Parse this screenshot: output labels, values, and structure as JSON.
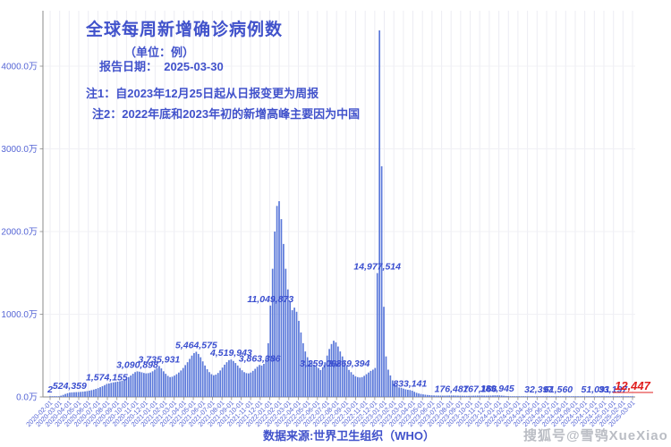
{
  "page": {
    "background": "#ffffff"
  },
  "header": {
    "title": "全球每周新增确诊病例数",
    "unit_note": "（单位：例）",
    "report_date": "报告日期：  2025-03-30",
    "note1": "注1：自2023年12月25日起从日报变更为周报",
    "note2": "注2：2022年底和2023年初的新增高峰主要因为中国"
  },
  "footer": {
    "source": "数据来源:世界卫生组织（WHO）",
    "watermark": "搜狐号@雪鸮XueXiao"
  },
  "chart_data": {
    "type": "bar",
    "title": "全球每周新增确诊病例数",
    "unit": "例",
    "series_name": "每周新增确诊病例数",
    "grid": true,
    "ylim": [
      0,
      44500000
    ],
    "bar_color": "#5b79da",
    "label_color": "#3a4ecf",
    "tick_label_color": "#5565d5",
    "highlight_color": "#e01f1f",
    "axis_color": "#8a8a8a",
    "y_ticks": [
      {
        "label": "0.0万",
        "value": 0
      },
      {
        "label": "1000.0万",
        "value": 10000000
      },
      {
        "label": "2000.0万",
        "value": 20000000
      },
      {
        "label": "3000.0万",
        "value": 30000000
      },
      {
        "label": "4000.0万",
        "value": 40000000
      }
    ],
    "x_tick_labels": [
      "2020-02-01",
      "2020-03-01",
      "2020-04-01",
      "2020-05-01",
      "2020-06-01",
      "2020-07-01",
      "2020-08-01",
      "2020-09-01",
      "2020-10-01",
      "2020-11-01",
      "2020-12-01",
      "2021-01-01",
      "2021-02-01",
      "2021-03-01",
      "2021-04-01",
      "2021-05-01",
      "2021-06-01",
      "2021-07-01",
      "2021-08-01",
      "2021-09-01",
      "2021-10-01",
      "2021-11-01",
      "2021-12-01",
      "2022-01-01",
      "2022-02-01",
      "2022-03-01",
      "2022-04-01",
      "2022-05-01",
      "2022-06-01",
      "2022-07-01",
      "2022-08-01",
      "2022-09-01",
      "2022-10-01",
      "2022-11-01",
      "2022-12-01",
      "2023-01-01",
      "2023-02-01",
      "2023-03-01",
      "2023-04-01",
      "2023-05-01",
      "2023-06-01",
      "2023-07-01",
      "2023-08-01",
      "2023-09-01",
      "2023-10-01",
      "2023-11-01",
      "2023-12-01",
      "2024-01-01",
      "2024-02-01",
      "2024-03-01",
      "2024-04-01",
      "2024-05-01",
      "2024-06-01",
      "2024-07-01",
      "2024-08-01",
      "2024-09-01",
      "2024-10-01",
      "2024-11-01",
      "2024-12-01",
      "2025-01-01",
      "2025-02-01",
      "2025-03-01"
    ],
    "values": [
      2,
      30000,
      60000,
      50000,
      80000,
      150000,
      250000,
      360000,
      450000,
      524359,
      550000,
      570000,
      580000,
      590000,
      610000,
      640000,
      670000,
      710000,
      760000,
      820000,
      890000,
      970000,
      1070000,
      1180000,
      1300000,
      1430000,
      1574155,
      1630000,
      1700000,
      1760000,
      1800000,
      1840000,
      1900000,
      1980000,
      2090000,
      2230000,
      2400000,
      2590000,
      2800000,
      3000000,
      3090898,
      3050000,
      2980000,
      2900000,
      2850000,
      2880000,
      2950000,
      3100000,
      3300000,
      3500000,
      3735931,
      3450000,
      3100000,
      2800000,
      2550000,
      2400000,
      2450000,
      2580000,
      2750000,
      2950000,
      3200000,
      3500000,
      3850000,
      4200000,
      4600000,
      5000000,
      5300000,
      5464575,
      5200000,
      4800000,
      4300000,
      3800000,
      3350000,
      3000000,
      2750000,
      2620000,
      2700000,
      2900000,
      3200000,
      3550000,
      3900000,
      4200000,
      4450000,
      4519943,
      4350000,
      4100000,
      3800000,
      3500000,
      3220000,
      3000000,
      2880000,
      2850000,
      2950000,
      3150000,
      3400000,
      3650000,
      3863386,
      3800000,
      4000000,
      4800000,
      6500000,
      11049873,
      15500000,
      20000000,
      23100000,
      23670000,
      21500000,
      18500000,
      15500000,
      13000000,
      11500000,
      10500000,
      10800000,
      10300000,
      9200000,
      7800000,
      6500000,
      5500000,
      4800000,
      4400000,
      4100000,
      3900000,
      3700000,
      3500000,
      3259098,
      3600000,
      4200000,
      5000000,
      5800000,
      6400000,
      6800000,
      6600000,
      6100000,
      5500000,
      4900000,
      4300000,
      3800000,
      3269394,
      3000000,
      2700000,
      2500000,
      2400000,
      2350000,
      2400000,
      2550000,
      2750000,
      2950000,
      3150000,
      3300000,
      3500000,
      14977514,
      44324000,
      27890000,
      10900000,
      4900000,
      3300000,
      2600000,
      2000000,
      1600000,
      1350000,
      1150000,
      1100000,
      1000000,
      920000,
      870000,
      833141,
      750000,
      620000,
      500000,
      420000,
      360000,
      310000,
      270000,
      240000,
      215000,
      195000,
      180000,
      172000,
      166000,
      161000,
      158000,
      160000,
      165000,
      170000,
      176487,
      172000,
      165000,
      157000,
      149000,
      142000,
      137000,
      135000,
      138000,
      143000,
      150000,
      157000,
      162000,
      167166,
      163000,
      155000,
      150000,
      155000,
      163000,
      175000,
      186000,
      189945,
      180000,
      162000,
      140000,
      120000,
      103000,
      90000,
      81000,
      74000,
      69000,
      64000,
      60000,
      56000,
      52000,
      48000,
      44000,
      41000,
      38000,
      35000,
      32397,
      33500,
      36000,
      40000,
      45000,
      50000,
      54000,
      57500,
      60000,
      61560,
      60500,
      58500,
      56000,
      53000,
      50000,
      47000,
      44000,
      41500,
      39500,
      38500,
      39500,
      41500,
      44000,
      46500,
      48500,
      50200,
      51091,
      49500,
      47000,
      44500,
      42000,
      39500,
      37000,
      35000,
      33197,
      31000,
      28500,
      26000,
      23500,
      21000,
      18500,
      16500,
      14500,
      12447
    ],
    "annotations": [
      {
        "week": 0,
        "text": "2"
      },
      {
        "week": 9,
        "text": "524,359"
      },
      {
        "week": 26,
        "text": "1,574,155"
      },
      {
        "week": 40,
        "text": "3,090,898"
      },
      {
        "week": 50,
        "text": "3,735,931"
      },
      {
        "week": 67,
        "text": "5,464,575"
      },
      {
        "week": 83,
        "text": "4,519,943"
      },
      {
        "week": 96,
        "text": "3,863,386"
      },
      {
        "week": 101,
        "text": "11,049,873"
      },
      {
        "week": 124,
        "text": "3,259,098"
      },
      {
        "week": 137,
        "text": "3,269,394"
      },
      {
        "week": 150,
        "text": "14,977,514"
      },
      {
        "week": 165,
        "text": "833,141"
      },
      {
        "week": 184,
        "text": "176,487"
      },
      {
        "week": 197,
        "text": "167,166"
      },
      {
        "week": 205,
        "text": "189,945"
      },
      {
        "week": 224,
        "text": "32,397"
      },
      {
        "week": 233,
        "text": "61,560"
      },
      {
        "week": 250,
        "text": "51,091"
      },
      {
        "week": 258,
        "text": "33,197"
      },
      {
        "week": 267,
        "text": "12,447",
        "highlight": true
      }
    ]
  }
}
